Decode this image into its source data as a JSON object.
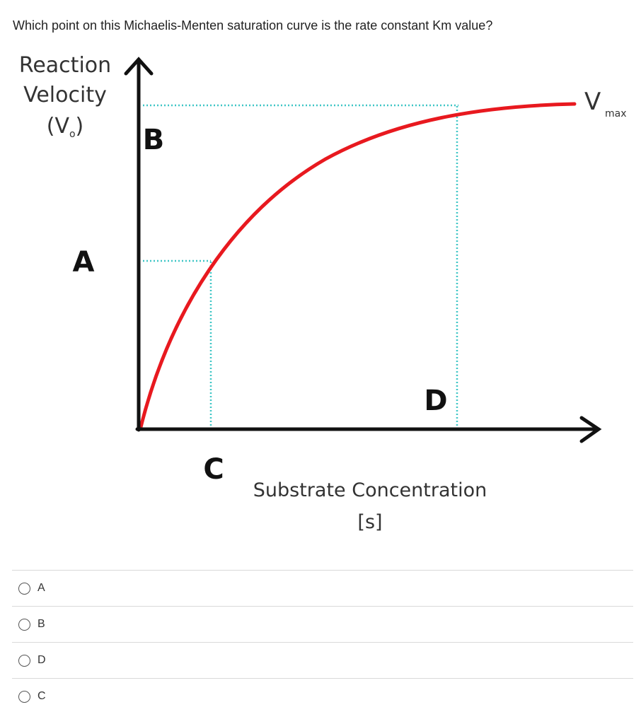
{
  "question": {
    "text": "Which point on this Michaelis-Menten saturation curve is the rate constant Km value?"
  },
  "figure": {
    "y_label_lines": [
      "Reaction",
      "Velocity",
      "(V",
      ")"
    ],
    "y_label_subscript": "o",
    "vmax_main": "V",
    "vmax_sub": "max",
    "x_label_lines": [
      "Substrate Concentration",
      "[s]"
    ],
    "point_labels": {
      "A": "A",
      "B": "B",
      "C": "C",
      "D": "D"
    },
    "colors": {
      "curve": "#e8191f",
      "guides": "#3fc6c6",
      "axes": "#111111"
    }
  },
  "choices": [
    {
      "label": "A"
    },
    {
      "label": "B"
    },
    {
      "label": "D"
    },
    {
      "label": "C"
    }
  ]
}
